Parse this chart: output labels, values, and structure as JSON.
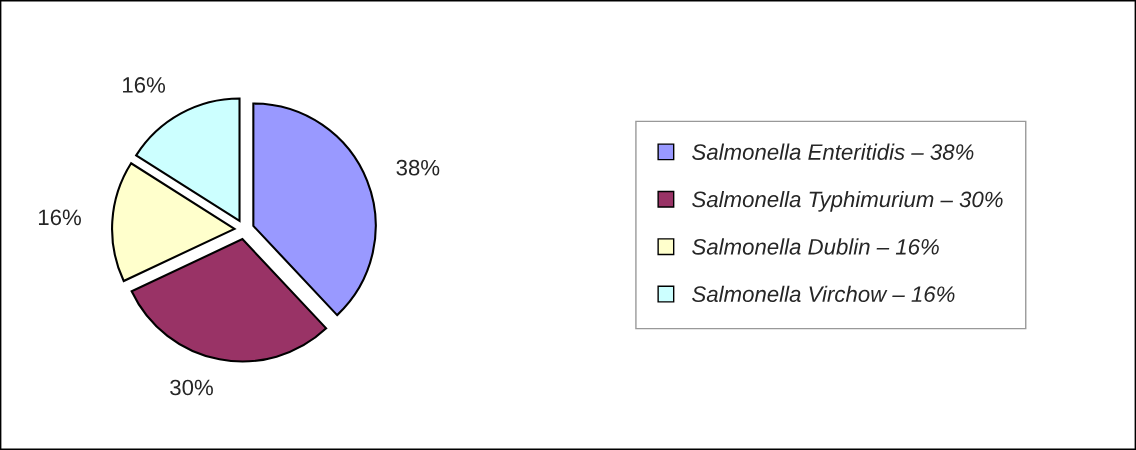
{
  "chart_data": {
    "type": "pie",
    "categories": [
      "Salmonella Enteritidis – 38%",
      "Salmonella Typhimurium – 30%",
      "Salmonella Dublin – 16%",
      "Salmonella Virchow – 16%"
    ],
    "values": [
      38,
      30,
      16,
      16
    ],
    "colors": [
      "#9999ff",
      "#993366",
      "#ffffcc",
      "#ccffff"
    ],
    "value_labels": [
      "38%",
      "30%",
      "16%",
      "16%"
    ],
    "legend": "right"
  }
}
